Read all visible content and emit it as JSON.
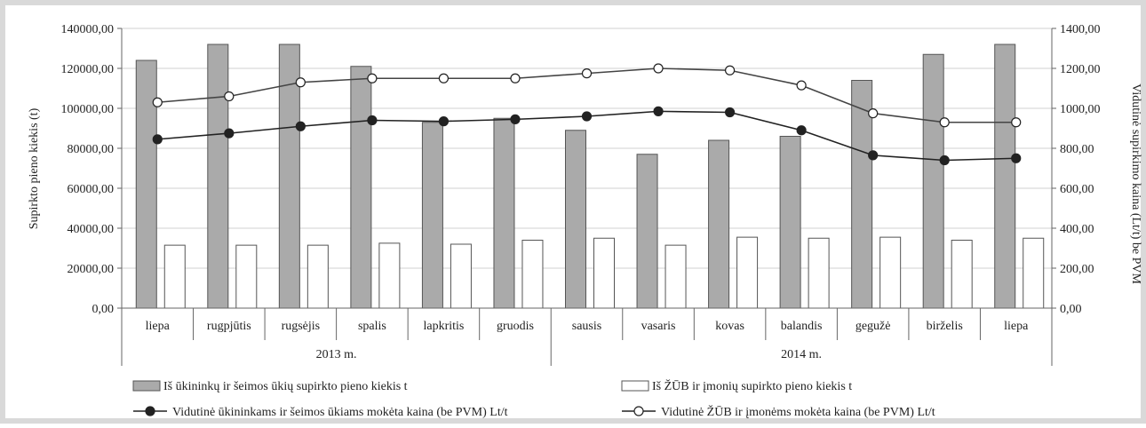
{
  "chart_data": {
    "type": "bar",
    "categories": [
      "liepa",
      "rugpjūtis",
      "rugsėjis",
      "spalis",
      "lapkritis",
      "gruodis",
      "sausis",
      "vasaris",
      "kovas",
      "balandis",
      "gegužė",
      "birželis",
      "liepa"
    ],
    "year_groups": [
      {
        "label": "2013 m.",
        "count": 6
      },
      {
        "label": "2014 m.",
        "count": 7
      }
    ],
    "ylabel": "Supirkto pieno kiekis (t)",
    "ylabel_right": "Vidutinė supirkimo kaina (Lt/t) be PVM",
    "ylim": [
      0,
      140000
    ],
    "ylim_right": [
      0,
      1400
    ],
    "yticks": [
      "0,00",
      "20000,00",
      "40000,00",
      "60000,00",
      "80000,00",
      "100000,00",
      "120000,00",
      "140000,00"
    ],
    "yticks_right": [
      "0,00",
      "200,00",
      "400,00",
      "600,00",
      "800,00",
      "1000,00",
      "1200,00",
      "1400,00"
    ],
    "grid": true,
    "legend_position": "bottom",
    "series": [
      {
        "name": "Iš ūkininkų ir šeimos ūkių supirkto pieno kiekis t",
        "kind": "bar",
        "axis": "left",
        "color": "#aaaaaa",
        "values": [
          124000,
          132000,
          132000,
          121000,
          93000,
          95000,
          89000,
          77000,
          84000,
          86000,
          114000,
          127000,
          132000
        ]
      },
      {
        "name": "Iš ŽŪB ir įmonių supirkto pieno kiekis t",
        "kind": "bar",
        "axis": "left",
        "color": "#ffffff",
        "values": [
          31500,
          31500,
          31500,
          32500,
          32000,
          34000,
          35000,
          31500,
          35500,
          35000,
          35500,
          34000,
          35000
        ]
      },
      {
        "name": "Vidutinė ūkininkams ir šeimos ūkiams mokėta kaina (be PVM) Lt/t",
        "kind": "line",
        "axis": "right",
        "color": "#222222",
        "marker": "filled",
        "values": [
          845,
          875,
          910,
          940,
          935,
          945,
          960,
          985,
          980,
          890,
          765,
          740,
          750
        ]
      },
      {
        "name": "Vidutinė ŽŪB ir įmonėms mokėta kaina (be PVM) Lt/t",
        "kind": "line",
        "axis": "right",
        "color": "#444444",
        "marker": "open",
        "values": [
          1030,
          1060,
          1130,
          1150,
          1150,
          1150,
          1175,
          1200,
          1190,
          1115,
          975,
          930,
          930
        ]
      }
    ]
  }
}
